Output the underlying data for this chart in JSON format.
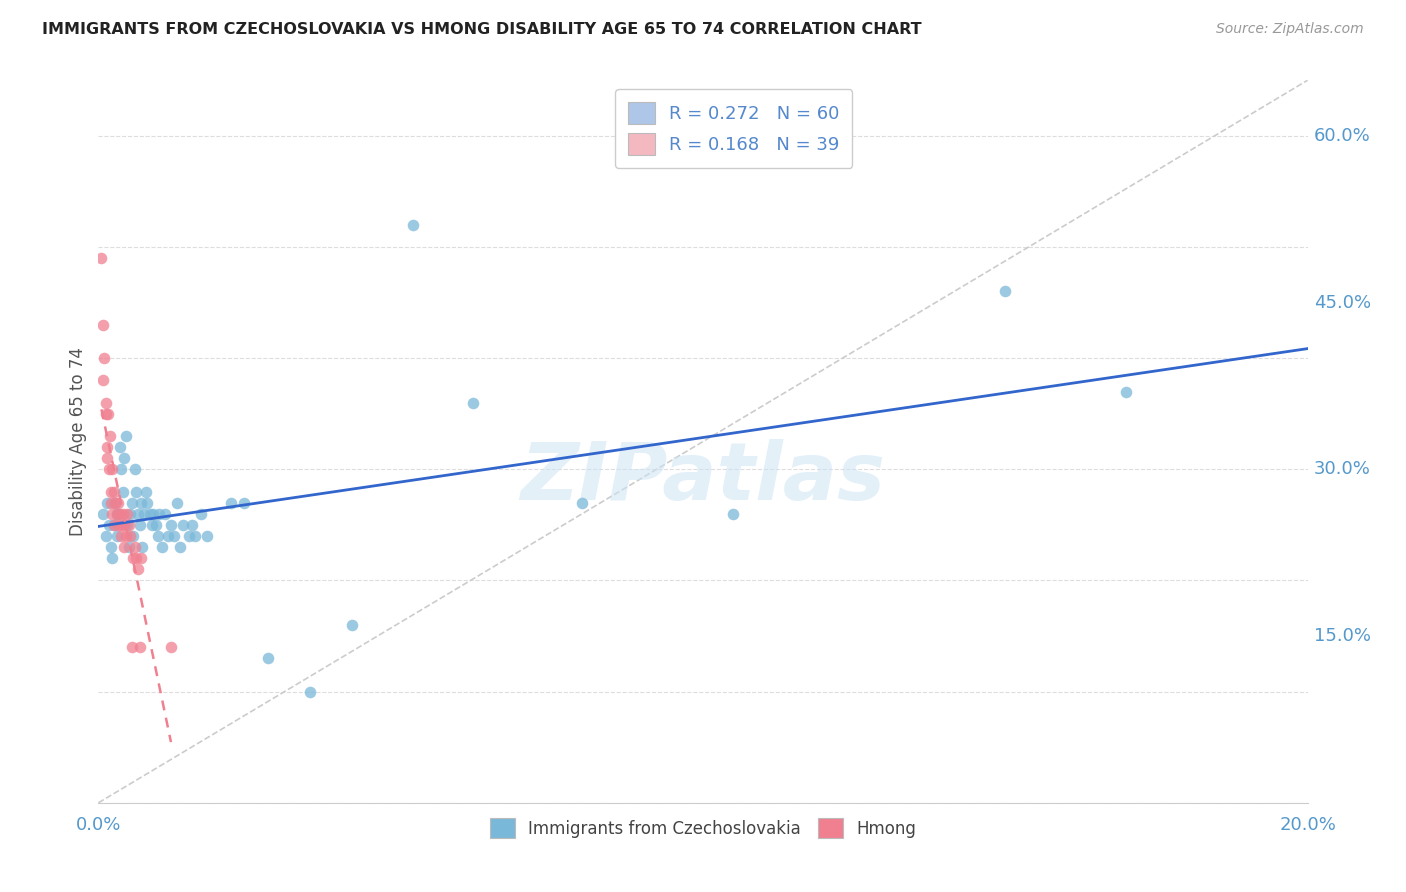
{
  "title": "IMMIGRANTS FROM CZECHOSLOVAKIA VS HMONG DISABILITY AGE 65 TO 74 CORRELATION CHART",
  "source": "Source: ZipAtlas.com",
  "ylabel": "Disability Age 65 to 74",
  "ytick_labels": [
    "15.0%",
    "30.0%",
    "45.0%",
    "60.0%"
  ],
  "ytick_values": [
    0.15,
    0.3,
    0.45,
    0.6
  ],
  "xlim": [
    0.0,
    0.2
  ],
  "ylim": [
    0.0,
    0.65
  ],
  "legend_entries": [
    {
      "label": "R = 0.272   N = 60",
      "color": "#aec6e8"
    },
    {
      "label": "R = 0.168   N = 39",
      "color": "#f4b8c1"
    }
  ],
  "watermark": "ZIPatlas",
  "series1_color": "#7ab8d9",
  "series2_color": "#f08090",
  "trendline1_color": "#3366cc",
  "trendline2_color": "#f08090",
  "R1": 0.272,
  "N1": 60,
  "R2": 0.168,
  "N2": 39,
  "series1_x": [
    0.0008,
    0.0012,
    0.0015,
    0.0018,
    0.002,
    0.0022,
    0.0025,
    0.0028,
    0.003,
    0.003,
    0.0033,
    0.0035,
    0.0038,
    0.004,
    0.0042,
    0.0045,
    0.0048,
    0.005,
    0.0052,
    0.0055,
    0.0058,
    0.006,
    0.0062,
    0.0065,
    0.0068,
    0.007,
    0.0072,
    0.0075,
    0.0078,
    0.008,
    0.0085,
    0.0088,
    0.009,
    0.0095,
    0.0098,
    0.01,
    0.0105,
    0.011,
    0.0115,
    0.012,
    0.0125,
    0.013,
    0.0135,
    0.014,
    0.015,
    0.0155,
    0.016,
    0.017,
    0.018,
    0.022,
    0.024,
    0.028,
    0.035,
    0.042,
    0.052,
    0.062,
    0.08,
    0.105,
    0.15,
    0.17
  ],
  "series1_y": [
    0.26,
    0.24,
    0.27,
    0.25,
    0.23,
    0.22,
    0.25,
    0.27,
    0.26,
    0.24,
    0.26,
    0.32,
    0.3,
    0.28,
    0.31,
    0.33,
    0.25,
    0.23,
    0.26,
    0.27,
    0.24,
    0.3,
    0.28,
    0.26,
    0.25,
    0.27,
    0.23,
    0.26,
    0.28,
    0.27,
    0.26,
    0.25,
    0.26,
    0.25,
    0.24,
    0.26,
    0.23,
    0.26,
    0.24,
    0.25,
    0.24,
    0.27,
    0.23,
    0.25,
    0.24,
    0.25,
    0.24,
    0.26,
    0.24,
    0.27,
    0.27,
    0.13,
    0.1,
    0.16,
    0.52,
    0.36,
    0.27,
    0.26,
    0.46,
    0.37
  ],
  "series2_x": [
    0.0005,
    0.0007,
    0.0008,
    0.001,
    0.0012,
    0.0013,
    0.0014,
    0.0015,
    0.0016,
    0.0018,
    0.0019,
    0.002,
    0.0021,
    0.0022,
    0.0023,
    0.0025,
    0.0026,
    0.0028,
    0.003,
    0.0032,
    0.0033,
    0.0035,
    0.0037,
    0.0038,
    0.004,
    0.0042,
    0.0043,
    0.0045,
    0.0047,
    0.005,
    0.0052,
    0.0055,
    0.0058,
    0.006,
    0.0062,
    0.0065,
    0.0068,
    0.007,
    0.012
  ],
  "series2_y": [
    0.49,
    0.43,
    0.38,
    0.4,
    0.36,
    0.35,
    0.32,
    0.31,
    0.35,
    0.3,
    0.33,
    0.28,
    0.27,
    0.3,
    0.26,
    0.28,
    0.25,
    0.27,
    0.26,
    0.27,
    0.25,
    0.26,
    0.24,
    0.25,
    0.26,
    0.25,
    0.23,
    0.24,
    0.26,
    0.25,
    0.24,
    0.14,
    0.22,
    0.23,
    0.22,
    0.21,
    0.14,
    0.22,
    0.14
  ],
  "diag_line_x": [
    0.0,
    0.2
  ],
  "diag_line_y": [
    0.0,
    0.65
  ]
}
